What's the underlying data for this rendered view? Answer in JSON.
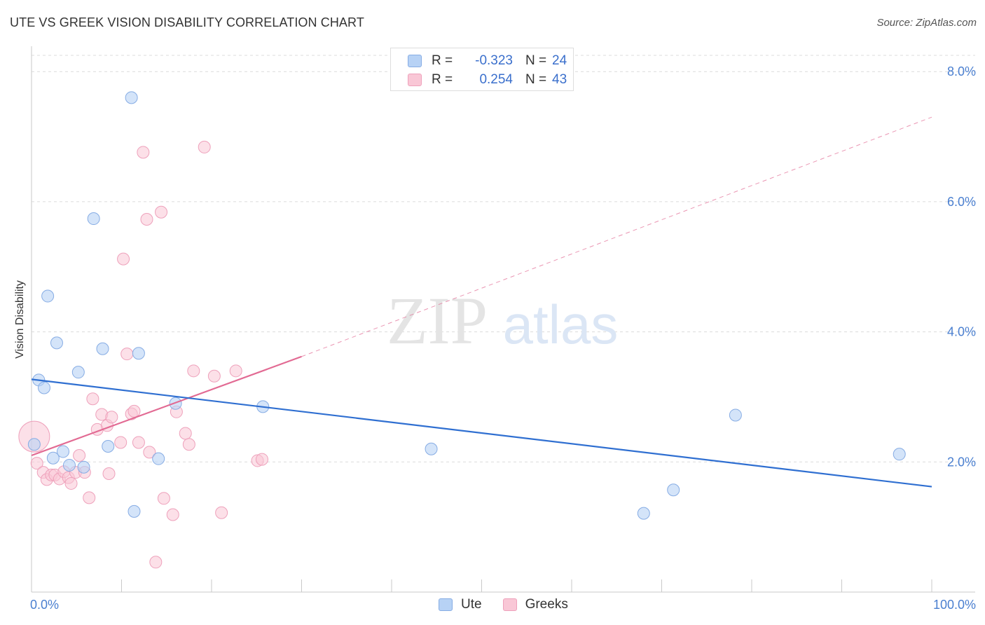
{
  "title": "UTE VS GREEK VISION DISABILITY CORRELATION CHART",
  "source": "Source: ZipAtlas.com",
  "watermark": {
    "zip": "ZIP",
    "atlas": "atlas"
  },
  "legend": {
    "rows": [
      {
        "r_label": "R =",
        "r_value": "-0.323",
        "n_label": "N =",
        "n_value": "24"
      },
      {
        "r_label": "R =",
        "r_value": "0.254",
        "n_label": "N =",
        "n_value": "43"
      }
    ]
  },
  "bottom_legend": {
    "ute": "Ute",
    "greeks": "Greeks"
  },
  "colors": {
    "ute_fill": "#b7d2f5",
    "ute_stroke": "#86ace4",
    "ute_line": "#2f6fd1",
    "greeks_fill": "#f9c7d6",
    "greeks_stroke": "#eea1bb",
    "greeks_line": "#e26a93",
    "tick_label": "#4a7fd0",
    "grid": "#dcdcdc"
  },
  "chart_data": {
    "type": "scatter",
    "title": "UTE VS GREEK VISION DISABILITY CORRELATION CHART",
    "xlabel": "",
    "ylabel": "Vision Disability",
    "xlim": [
      0,
      100
    ],
    "ylim": [
      0,
      8.25
    ],
    "x_tick_labels": [
      {
        "value": 0,
        "label": "0.0%"
      },
      {
        "value": 100,
        "label": "100.0%"
      }
    ],
    "y_tick_labels": [
      {
        "value": 2,
        "label": "2.0%"
      },
      {
        "value": 4,
        "label": "4.0%"
      },
      {
        "value": 6,
        "label": "6.0%"
      },
      {
        "value": 8,
        "label": "8.0%"
      }
    ],
    "series": [
      {
        "name": "Ute",
        "r": -0.323,
        "n": 24,
        "trend": {
          "x0": 0,
          "y0": 3.27,
          "x1": 100,
          "y1": 1.62
        },
        "points": [
          {
            "x": 0.3,
            "y": 2.27
          },
          {
            "x": 0.8,
            "y": 3.26
          },
          {
            "x": 1.4,
            "y": 3.14
          },
          {
            "x": 1.8,
            "y": 4.55
          },
          {
            "x": 2.4,
            "y": 2.06
          },
          {
            "x": 2.8,
            "y": 3.83
          },
          {
            "x": 3.5,
            "y": 2.16
          },
          {
            "x": 4.2,
            "y": 1.95
          },
          {
            "x": 5.2,
            "y": 3.38
          },
          {
            "x": 5.8,
            "y": 1.92
          },
          {
            "x": 6.9,
            "y": 5.74
          },
          {
            "x": 7.9,
            "y": 3.74
          },
          {
            "x": 8.5,
            "y": 2.24
          },
          {
            "x": 11.1,
            "y": 7.6
          },
          {
            "x": 11.4,
            "y": 1.24
          },
          {
            "x": 11.9,
            "y": 3.67
          },
          {
            "x": 14.1,
            "y": 2.05
          },
          {
            "x": 16.0,
            "y": 2.9
          },
          {
            "x": 25.7,
            "y": 2.85
          },
          {
            "x": 44.4,
            "y": 2.2
          },
          {
            "x": 68.0,
            "y": 1.21
          },
          {
            "x": 71.3,
            "y": 1.57
          },
          {
            "x": 78.2,
            "y": 2.72
          },
          {
            "x": 96.4,
            "y": 2.12
          }
        ]
      },
      {
        "name": "Greeks",
        "r": 0.254,
        "n": 43,
        "trend": {
          "x0": 0,
          "y0": 2.1,
          "x1": 30,
          "y1": 3.62
        },
        "trend_extension": {
          "x0": 30,
          "y0": 3.62,
          "x1": 100,
          "y1": 7.3
        },
        "points": [
          {
            "x": 0.3,
            "y": 2.39,
            "large": true
          },
          {
            "x": 0.6,
            "y": 1.98
          },
          {
            "x": 1.3,
            "y": 1.84
          },
          {
            "x": 1.7,
            "y": 1.73
          },
          {
            "x": 2.2,
            "y": 1.8
          },
          {
            "x": 2.6,
            "y": 1.8
          },
          {
            "x": 3.1,
            "y": 1.74
          },
          {
            "x": 3.6,
            "y": 1.85
          },
          {
            "x": 4.1,
            "y": 1.76
          },
          {
            "x": 4.4,
            "y": 1.67
          },
          {
            "x": 4.9,
            "y": 1.84
          },
          {
            "x": 5.3,
            "y": 2.1
          },
          {
            "x": 5.9,
            "y": 1.84
          },
          {
            "x": 6.4,
            "y": 1.45
          },
          {
            "x": 6.8,
            "y": 2.97
          },
          {
            "x": 7.3,
            "y": 2.5
          },
          {
            "x": 7.8,
            "y": 2.73
          },
          {
            "x": 8.4,
            "y": 2.56
          },
          {
            "x": 8.6,
            "y": 1.82
          },
          {
            "x": 8.9,
            "y": 2.69
          },
          {
            "x": 9.9,
            "y": 2.3
          },
          {
            "x": 10.2,
            "y": 5.12
          },
          {
            "x": 10.6,
            "y": 3.66
          },
          {
            "x": 11.1,
            "y": 2.74
          },
          {
            "x": 11.4,
            "y": 2.78
          },
          {
            "x": 11.9,
            "y": 2.3
          },
          {
            "x": 12.4,
            "y": 6.76
          },
          {
            "x": 12.8,
            "y": 5.73
          },
          {
            "x": 13.1,
            "y": 2.15
          },
          {
            "x": 13.8,
            "y": 0.46
          },
          {
            "x": 14.4,
            "y": 5.84
          },
          {
            "x": 14.7,
            "y": 1.44
          },
          {
            "x": 15.7,
            "y": 1.19
          },
          {
            "x": 16.1,
            "y": 2.77
          },
          {
            "x": 17.1,
            "y": 2.44
          },
          {
            "x": 17.5,
            "y": 2.27
          },
          {
            "x": 18.0,
            "y": 3.4
          },
          {
            "x": 19.2,
            "y": 6.84
          },
          {
            "x": 20.3,
            "y": 3.32
          },
          {
            "x": 21.1,
            "y": 1.22
          },
          {
            "x": 22.7,
            "y": 3.4
          },
          {
            "x": 25.1,
            "y": 2.02
          },
          {
            "x": 25.6,
            "y": 2.04
          }
        ]
      }
    ]
  }
}
